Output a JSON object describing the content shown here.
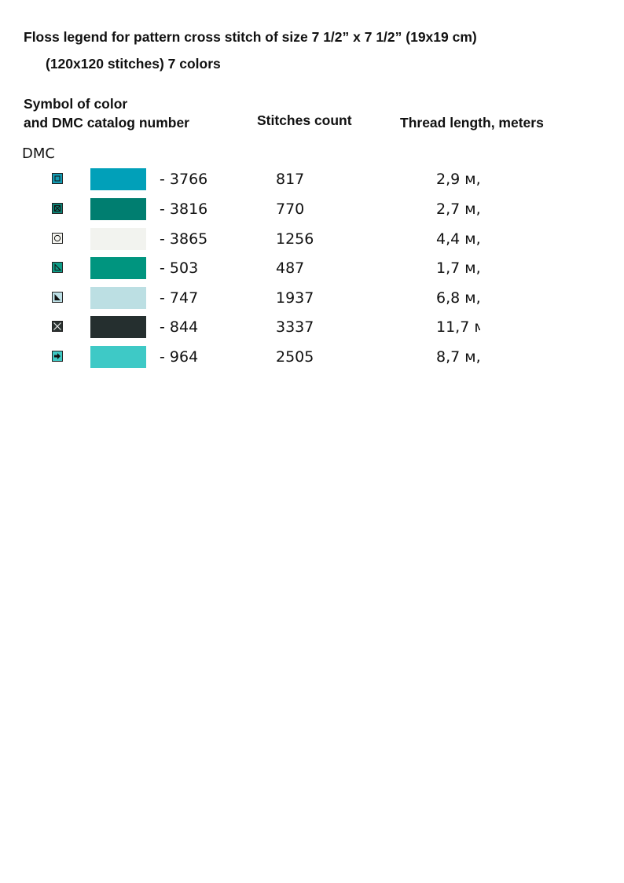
{
  "title": "Floss legend for pattern cross stitch of size 7 1/2” x 7 1/2” (19x19 cm)",
  "subtitle": "(120x120 stitches) 7 colors",
  "headers": {
    "symbol_line1": "Symbol of color",
    "symbol_line2": "and DMC catalog number",
    "stitches": "Stitches count",
    "length": "Thread length, meters"
  },
  "brand": "DMC",
  "rows": [
    {
      "symbol": "square-icon",
      "symbol_bg": "#129cb4",
      "color": "#01a0b9",
      "code": "- 3766",
      "count": "817",
      "length": "2,9 м,"
    },
    {
      "symbol": "crossed-square-icon",
      "symbol_bg": "#0b8073",
      "color": "#007e70",
      "code": "- 3816",
      "count": "770",
      "length": "2,7 м,"
    },
    {
      "symbol": "circle-icon",
      "symbol_bg": "#f4f4ef",
      "color": "#f2f3ef",
      "code": "- 3865",
      "count": "1256",
      "length": "4,4 м,"
    },
    {
      "symbol": "triangle-outline-icon",
      "symbol_bg": "#0d9b86",
      "color": "#00957f",
      "code": "- 503",
      "count": "487",
      "length": "1,7 м,"
    },
    {
      "symbol": "triangle-filled-icon",
      "symbol_bg": "#bde0e6",
      "color": "#bcdfe3",
      "code": "- 747",
      "count": "1937",
      "length": "6,8 м,"
    },
    {
      "symbol": "x-mark-icon",
      "symbol_bg": "#2a3230",
      "color": "#252f2f",
      "code": "- 844",
      "count": "3337",
      "length": "11,7 м,"
    },
    {
      "symbol": "arrow-right-icon",
      "symbol_bg": "#3ec9c4",
      "color": "#3ec9c6",
      "code": "- 964",
      "count": "2505",
      "length": "8,7 м,"
    }
  ]
}
